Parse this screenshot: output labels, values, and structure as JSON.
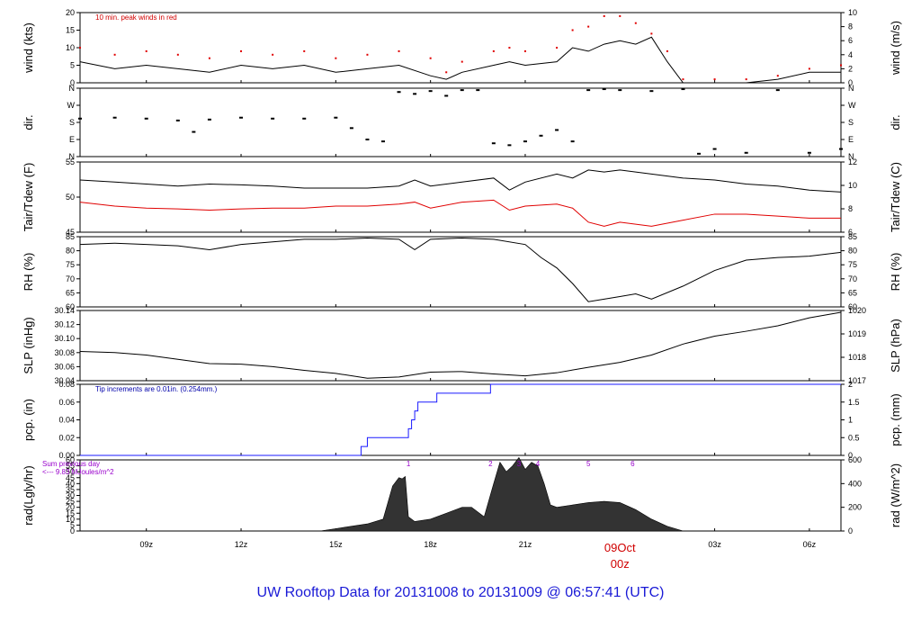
{
  "footer_title": "UW Rooftop Data for 20131008  to  20131009 @ 06:57:41  (UTC)",
  "colors": {
    "footer": "#1a1ad6",
    "peak": "#e00000",
    "precip": "#1a1aff",
    "note_red": "#d00000",
    "note_blue": "#0000aa",
    "purple": "#9900cc",
    "axis_date": "#d00000"
  },
  "x_axis": {
    "ticks": [
      {
        "label": "09z",
        "hour": 9
      },
      {
        "label": "12z",
        "hour": 12
      },
      {
        "label": "15z",
        "hour": 15
      },
      {
        "label": "18z",
        "hour": 18
      },
      {
        "label": "21z",
        "hour": 21
      },
      {
        "label": "03z",
        "hour": 27
      },
      {
        "label": "06z",
        "hour": 30
      }
    ],
    "date_label": "09Oct",
    "date_sub": "00z",
    "date_hour": 24
  },
  "chart_data": [
    {
      "type": "line",
      "ylabel": "wind (kts)",
      "ylabel_right": "wind (m/s)",
      "ylim": [
        0,
        20
      ],
      "yticks": [
        "0",
        "5",
        "10",
        "15",
        "20"
      ],
      "yticks_right": [
        "0",
        "2",
        "4",
        "6",
        "8",
        "10"
      ],
      "annotation": "10 min. peak winds in red",
      "x_hours": [
        6.9,
        8,
        9,
        10,
        11,
        12,
        13,
        14,
        15,
        16,
        17,
        18,
        18.5,
        19,
        20,
        20.5,
        21,
        22,
        22.5,
        23,
        23.5,
        24,
        24.5,
        25,
        25.5,
        26,
        27,
        28,
        29,
        30,
        31.0
      ],
      "values": [
        6,
        4,
        5,
        4,
        3,
        5,
        4,
        5,
        3,
        4,
        5,
        2,
        1,
        3,
        5,
        6,
        5,
        6,
        10,
        9,
        11,
        12,
        11,
        13,
        6,
        0,
        0,
        0,
        1,
        3,
        3
      ],
      "peaks": [
        10,
        8,
        9,
        8,
        7,
        9,
        8,
        9,
        7,
        8,
        9,
        7,
        3,
        6,
        9,
        10,
        9,
        10,
        15,
        16,
        19,
        19,
        17,
        14,
        9,
        1,
        1,
        1,
        2,
        4,
        5
      ]
    },
    {
      "type": "scatter",
      "ylabel": "dir.",
      "ylabel_right": "dir.",
      "yticks": [
        "N",
        "E",
        "S",
        "W",
        "N"
      ],
      "ylim_deg": [
        0,
        360
      ],
      "x_hours": [
        6.9,
        8,
        9,
        10,
        10.5,
        11,
        12,
        13,
        14,
        15,
        15.5,
        16,
        16.5,
        17,
        17.5,
        18,
        18.5,
        19,
        19.5,
        20,
        20.5,
        21,
        21.5,
        22,
        22.5,
        23,
        23.5,
        24,
        25,
        26,
        26.5,
        27,
        28,
        29,
        30,
        31.0
      ],
      "values": [
        200,
        205,
        200,
        190,
        130,
        195,
        205,
        200,
        200,
        205,
        150,
        90,
        80,
        340,
        330,
        345,
        320,
        350,
        350,
        70,
        60,
        80,
        110,
        140,
        80,
        350,
        355,
        350,
        345,
        355,
        15,
        40,
        20,
        350,
        20,
        40
      ]
    },
    {
      "type": "line",
      "ylabel": "Tair/Tdew (F)",
      "ylabel_right": "Tair/Tdew (C)",
      "ylim": [
        40.5,
        58
      ],
      "yticks": [
        "45",
        "50",
        "55"
      ],
      "yticks_right": [
        "6",
        "8",
        "10",
        "12"
      ],
      "x_hours": [
        6.9,
        8,
        9,
        10,
        11,
        12,
        13,
        14,
        15,
        16,
        17,
        17.5,
        18,
        19,
        20,
        20.5,
        21,
        22,
        22.5,
        23,
        23.5,
        24,
        25,
        26,
        27,
        28,
        29,
        30,
        31.0
      ],
      "series": [
        {
          "color": "#000000",
          "values": [
            53.5,
            53,
            52.5,
            52,
            52.5,
            52.3,
            52,
            51.5,
            51.5,
            51.5,
            52,
            53.5,
            52,
            53,
            54,
            51,
            53,
            55,
            54,
            56,
            55.5,
            56,
            55,
            54,
            53.5,
            52.5,
            52,
            51,
            50.5
          ]
        },
        {
          "color": "#e00000",
          "values": [
            48,
            47,
            46.5,
            46.3,
            46,
            46.3,
            46.5,
            46.5,
            47,
            47,
            47.5,
            48,
            46.5,
            48,
            48.5,
            46,
            47,
            47.5,
            46.5,
            43,
            42,
            43,
            42,
            43.5,
            45,
            45,
            44.5,
            44,
            44
          ]
        }
      ]
    },
    {
      "type": "line",
      "ylabel": "RH (%)",
      "ylabel_right": "RH (%)",
      "ylim": [
        58,
        85
      ],
      "yticks": [
        "60",
        "65",
        "70",
        "75",
        "80",
        "85"
      ],
      "x_hours": [
        6.9,
        8,
        9,
        10,
        11,
        12,
        13,
        14,
        15,
        16,
        17,
        17.5,
        18,
        19,
        20,
        21,
        21.5,
        22,
        22.5,
        23,
        23.5,
        24,
        24.5,
        25,
        26,
        27,
        28,
        29,
        30,
        31.0
      ],
      "values": [
        82,
        82.5,
        82,
        81.5,
        80,
        82,
        83,
        84,
        84,
        84.5,
        84,
        80,
        84,
        84.5,
        84,
        82,
        77,
        73,
        67,
        60,
        61,
        62,
        63,
        61,
        66,
        72,
        76,
        77,
        77.5,
        79
      ]
    },
    {
      "type": "line",
      "ylabel": "SLP (inHg)",
      "ylabel_right": "SLP (hPa)",
      "ylim": [
        30.03,
        30.145
      ],
      "yticks": [
        "30.04",
        "30.06",
        "30.08",
        "30.10",
        "30.12",
        "30.14"
      ],
      "yticks_right": [
        "1017",
        "1018",
        "1019",
        "1020"
      ],
      "x_hours": [
        6.9,
        8,
        9,
        10,
        11,
        12,
        13,
        14,
        15,
        16,
        17,
        18,
        19,
        20,
        21,
        22,
        23,
        24,
        25,
        26,
        27,
        28,
        29,
        30,
        31.0
      ],
      "values": [
        30.078,
        30.076,
        30.072,
        30.065,
        30.058,
        30.057,
        30.053,
        30.047,
        30.042,
        30.034,
        30.036,
        30.044,
        30.045,
        30.041,
        30.038,
        30.043,
        30.052,
        30.06,
        30.072,
        30.09,
        30.103,
        30.111,
        30.12,
        30.133,
        30.142
      ]
    },
    {
      "type": "line",
      "ylabel": "pcp. (in)",
      "ylabel_right": "pcp. (mm)",
      "ylim": [
        0,
        0.08
      ],
      "yticks": [
        "0.00",
        "0.02",
        "0.04",
        "0.06",
        "0.08"
      ],
      "yticks_right": [
        "0",
        "0.5",
        "1",
        "1.5",
        "2"
      ],
      "annotation": "Tip increments are 0.01in. (0.254mm.)",
      "x_hours": [
        6.9,
        15.8,
        15.8,
        16.0,
        16.0,
        17.3,
        17.3,
        17.4,
        17.4,
        17.5,
        17.5,
        17.6,
        17.6,
        18.2,
        18.2,
        19.9,
        19.9,
        31.0
      ],
      "values": [
        0,
        0,
        0.01,
        0.01,
        0.02,
        0.02,
        0.03,
        0.03,
        0.04,
        0.04,
        0.05,
        0.05,
        0.06,
        0.06,
        0.07,
        0.07,
        0.08,
        0.08
      ]
    },
    {
      "type": "area",
      "ylabel": "rad(Lgly/hr)",
      "ylabel_right": "rad (W/m^2)",
      "ylim": [
        0,
        60
      ],
      "yticks": [
        "0",
        "5",
        "10",
        "15",
        "20",
        "25",
        "30",
        "35",
        "40",
        "45",
        "50",
        "55",
        "60"
      ],
      "yticks_right": [
        "0",
        "200",
        "400",
        "600"
      ],
      "annotation_line1": "Sum previous day",
      "annotation_line2": "<--- 9.83 MJoules/m^2",
      "event_markers": [
        {
          "label": "1",
          "hour": 17.3
        },
        {
          "label": "2",
          "hour": 19.9
        },
        {
          "label": "3",
          "hour": 20.8
        },
        {
          "label": "4",
          "hour": 21.4
        },
        {
          "label": "5",
          "hour": 23.0
        },
        {
          "label": "6",
          "hour": 24.4
        }
      ],
      "x_hours": [
        6.9,
        14.5,
        15,
        15.5,
        16,
        16.5,
        16.8,
        17.0,
        17.1,
        17.2,
        17.3,
        17.5,
        18,
        18.5,
        19,
        19.3,
        19.7,
        20.0,
        20.2,
        20.4,
        20.6,
        20.8,
        21.0,
        21.2,
        21.4,
        21.6,
        21.8,
        22.0,
        22.5,
        23,
        23.5,
        24,
        24.5,
        25,
        25.5,
        26,
        31.0
      ],
      "values": [
        0,
        0,
        2,
        4,
        6,
        10,
        38,
        45,
        44,
        46,
        12,
        8,
        10,
        15,
        20,
        20,
        12,
        40,
        58,
        50,
        55,
        62,
        52,
        58,
        55,
        40,
        22,
        20,
        22,
        24,
        25,
        24,
        18,
        10,
        4,
        0,
        0
      ]
    }
  ]
}
